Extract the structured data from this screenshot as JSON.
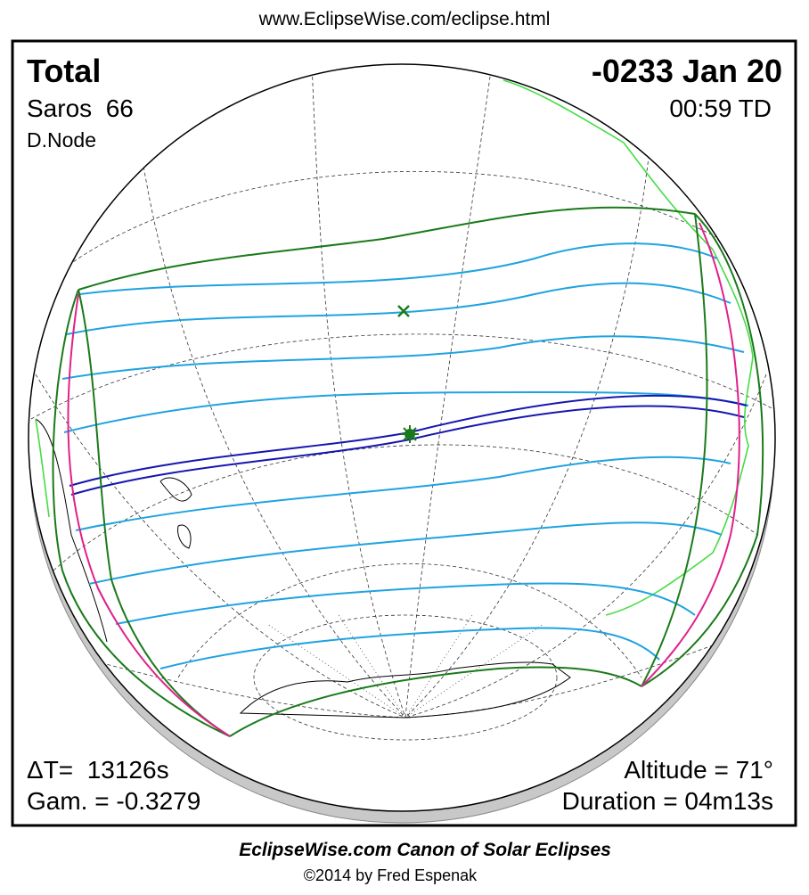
{
  "header": {
    "url": "www.EclipseWise.com/eclipse.html"
  },
  "panel": {
    "type": "Total",
    "date": "-0233 Jan 20",
    "saros": "Saros  66",
    "time": "00:59 TD",
    "node": "D.Node",
    "delta_t": "ΔT=  13126s",
    "altitude": "Altitude = 71°",
    "gamma": "Gam. = -0.3279",
    "duration": "Duration = 04m13s"
  },
  "footer": {
    "title": "EclipseWise.com Canon of Solar Eclipses",
    "copyright": "©2014 by Fred Espenak"
  }
}
